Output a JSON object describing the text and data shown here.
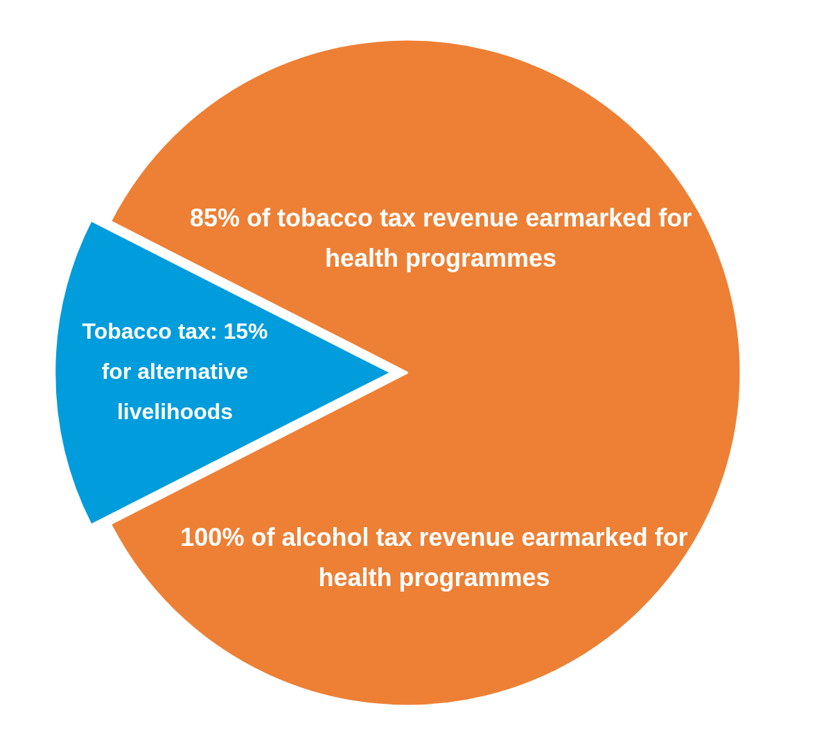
{
  "chart_data": {
    "type": "pie",
    "categories": [
      "85% of tobacco tax revenue earmarked for health programmes",
      "Tobacco tax: 15% for alternative livelihoods"
    ],
    "values": [
      85,
      15
    ],
    "colors": [
      "#ed8035",
      "#009cdc"
    ],
    "annotations": [
      "100% of alcohol tax revenue earmarked for health programmes"
    ],
    "legend": false
  }
}
